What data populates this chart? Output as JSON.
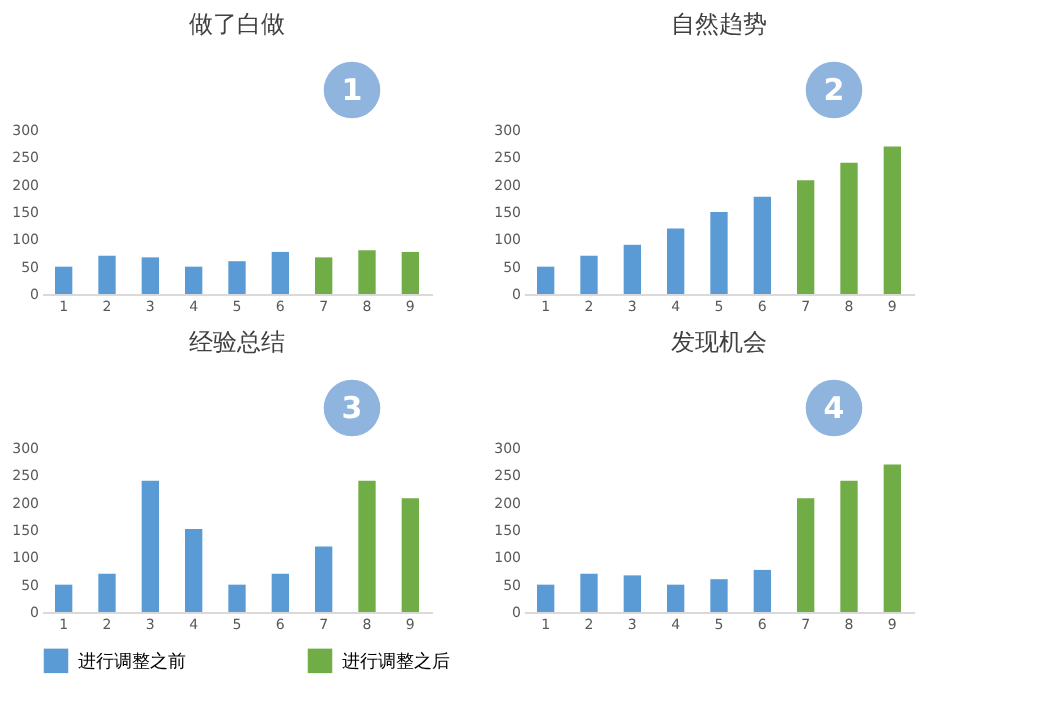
{
  "chart_data": [
    {
      "type": "bar",
      "title": "做了白做",
      "annotations": [
        "1"
      ],
      "categories": [
        "1",
        "2",
        "3",
        "4",
        "5",
        "6",
        "7",
        "8",
        "9"
      ],
      "ylim": [
        0,
        300
      ],
      "yticks": [
        0,
        50,
        100,
        150,
        200,
        250,
        300
      ],
      "grid": false,
      "legend": false,
      "series": [
        {
          "color": "#5b9bd5",
          "values": [
            50,
            70,
            67,
            50,
            60,
            77,
            null,
            null,
            null
          ]
        },
        {
          "color": "#70ad47",
          "values": [
            null,
            null,
            null,
            null,
            null,
            null,
            67,
            80,
            77
          ]
        }
      ]
    },
    {
      "type": "bar",
      "title": "自然趋势",
      "annotations": [
        "2"
      ],
      "categories": [
        "1",
        "2",
        "3",
        "4",
        "5",
        "6",
        "7",
        "8",
        "9"
      ],
      "ylim": [
        0,
        300
      ],
      "yticks": [
        0,
        50,
        100,
        150,
        200,
        250,
        300
      ],
      "grid": false,
      "legend": false,
      "series": [
        {
          "color": "#5b9bd5",
          "values": [
            50,
            70,
            90,
            120,
            150,
            178,
            null,
            null,
            null
          ]
        },
        {
          "color": "#70ad47",
          "values": [
            null,
            null,
            null,
            null,
            null,
            null,
            208,
            240,
            270
          ]
        }
      ]
    },
    {
      "type": "bar",
      "title": "经验总结",
      "annotations": [
        "3"
      ],
      "categories": [
        "1",
        "2",
        "3",
        "4",
        "5",
        "6",
        "7",
        "8",
        "9"
      ],
      "ylim": [
        0,
        300
      ],
      "yticks": [
        0,
        50,
        100,
        150,
        200,
        250,
        300
      ],
      "grid": false,
      "legend": false,
      "series": [
        {
          "color": "#5b9bd5",
          "values": [
            50,
            70,
            240,
            152,
            50,
            70,
            120,
            null,
            null
          ]
        },
        {
          "color": "#70ad47",
          "values": [
            null,
            null,
            null,
            null,
            null,
            null,
            null,
            240,
            208
          ]
        }
      ]
    },
    {
      "type": "bar",
      "title": "发现机会",
      "annotations": [
        "4"
      ],
      "categories": [
        "1",
        "2",
        "3",
        "4",
        "5",
        "6",
        "7",
        "8",
        "9"
      ],
      "ylim": [
        0,
        300
      ],
      "yticks": [
        0,
        50,
        100,
        150,
        200,
        250,
        300
      ],
      "grid": false,
      "legend": "bottom",
      "series": [
        {
          "name": "进行调整之前",
          "color": "#5b9bd5",
          "values": [
            50,
            70,
            67,
            50,
            60,
            77,
            null,
            null,
            null
          ]
        },
        {
          "name": "进行调整之后",
          "color": "#70ad47",
          "values": [
            null,
            null,
            null,
            null,
            null,
            null,
            208,
            240,
            270
          ]
        }
      ]
    }
  ]
}
